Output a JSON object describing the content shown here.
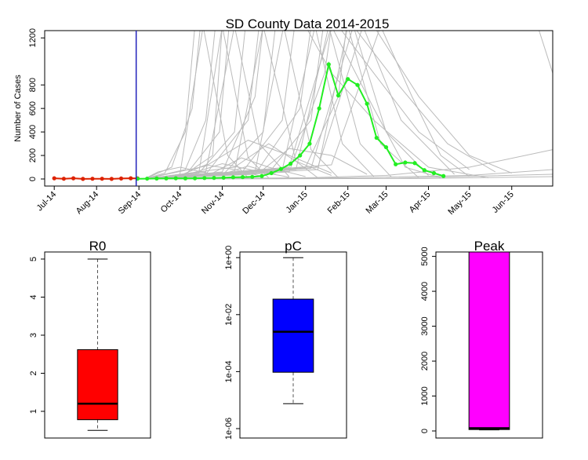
{
  "chart_data": [
    {
      "type": "line",
      "title": "SD County Data 2014-2015",
      "xlabel": "",
      "ylabel": "Number of Cases",
      "x_range": [
        "2014-06-24",
        "2015-07-01"
      ],
      "ylim": [
        0,
        1200
      ],
      "yticks": [
        0,
        200,
        400,
        600,
        800,
        1200
      ],
      "x_ticks": [
        {
          "label": "Jul-14",
          "date": "2014-07-01"
        },
        {
          "label": "Aug-14",
          "date": "2014-08-01"
        },
        {
          "label": "Sep-14",
          "date": "2014-09-01"
        },
        {
          "label": "Oct-14",
          "date": "2014-10-01"
        },
        {
          "label": "Nov-14",
          "date": "2014-11-01"
        },
        {
          "label": "Dec-14",
          "date": "2014-12-01"
        },
        {
          "label": "Jan-15",
          "date": "2015-01-01"
        },
        {
          "label": "Feb-15",
          "date": "2015-02-01"
        },
        {
          "label": "Mar-15",
          "date": "2015-03-01"
        },
        {
          "label": "Apr-15",
          "date": "2015-04-01"
        },
        {
          "label": "May-15",
          "date": "2015-05-01"
        },
        {
          "label": "Jun-15",
          "date": "2015-06-01"
        }
      ],
      "forecast_start": "2014-08-30",
      "colors": {
        "observed": "#dd2200",
        "fitted": "#22ee22",
        "simulations": "#bbbbbb",
        "forecast_line": "#2222bb"
      },
      "series": [
        {
          "color": "#dd2200",
          "points": [
            [
              "2014-07-01",
              6
            ],
            [
              "2014-07-08",
              2
            ],
            [
              "2014-07-15",
              6
            ],
            [
              "2014-07-22",
              1
            ],
            [
              "2014-07-29",
              2
            ],
            [
              "2014-08-05",
              2
            ],
            [
              "2014-08-12",
              1
            ],
            [
              "2014-08-19",
              4
            ],
            [
              "2014-08-26",
              6
            ],
            [
              "2014-08-31",
              5
            ]
          ]
        },
        {
          "color": "#22ee22",
          "points": [
            [
              "2014-08-31",
              2
            ],
            [
              "2014-09-07",
              3
            ],
            [
              "2014-09-14",
              4
            ],
            [
              "2014-09-21",
              5
            ],
            [
              "2014-09-28",
              6
            ],
            [
              "2014-10-05",
              5
            ],
            [
              "2014-10-12",
              6
            ],
            [
              "2014-10-19",
              8
            ],
            [
              "2014-10-26",
              9
            ],
            [
              "2014-11-02",
              11
            ],
            [
              "2014-11-09",
              14
            ],
            [
              "2014-11-16",
              16
            ],
            [
              "2014-11-23",
              18
            ],
            [
              "2014-11-30",
              25
            ],
            [
              "2014-12-07",
              50
            ],
            [
              "2014-12-14",
              85
            ],
            [
              "2014-12-21",
              130
            ],
            [
              "2014-12-28",
              200
            ],
            [
              "2015-01-04",
              300
            ],
            [
              "2015-01-11",
              600
            ],
            [
              "2015-01-18",
              975
            ],
            [
              "2015-01-25",
              710
            ],
            [
              "2015-02-01",
              850
            ],
            [
              "2015-02-08",
              800
            ],
            [
              "2015-02-15",
              640
            ],
            [
              "2015-02-22",
              350
            ],
            [
              "2015-03-01",
              270
            ],
            [
              "2015-03-08",
              125
            ],
            [
              "2015-03-15",
              140
            ],
            [
              "2015-03-22",
              135
            ],
            [
              "2015-03-29",
              75
            ],
            [
              "2015-04-05",
              50
            ],
            [
              "2015-04-12",
              25
            ]
          ]
        }
      ],
      "simulations": [
        [
          [
            "2014-09-05",
            0
          ],
          [
            "2014-10-01",
            10
          ],
          [
            "2014-10-25",
            200
          ],
          [
            "2014-11-01",
            1300
          ]
        ],
        [
          [
            "2014-09-05",
            0
          ],
          [
            "2014-10-05",
            30
          ],
          [
            "2014-10-30",
            400
          ],
          [
            "2014-11-06",
            1300
          ]
        ],
        [
          [
            "2014-09-05",
            0
          ],
          [
            "2014-09-20",
            50
          ],
          [
            "2014-10-05",
            400
          ],
          [
            "2014-10-12",
            1300
          ]
        ],
        [
          [
            "2014-09-05",
            0
          ],
          [
            "2014-09-25",
            100
          ],
          [
            "2014-10-10",
            600
          ],
          [
            "2014-10-16",
            1300
          ]
        ],
        [
          [
            "2014-09-05",
            0
          ],
          [
            "2014-10-05",
            80
          ],
          [
            "2014-10-20",
            500
          ],
          [
            "2014-10-27",
            1300
          ]
        ],
        [
          [
            "2014-09-05",
            0
          ],
          [
            "2014-10-15",
            50
          ],
          [
            "2014-11-10",
            400
          ],
          [
            "2014-11-18",
            1300
          ]
        ],
        [
          [
            "2014-09-05",
            0
          ],
          [
            "2014-10-20",
            40
          ],
          [
            "2014-11-20",
            500
          ],
          [
            "2014-11-28",
            1300
          ]
        ],
        [
          [
            "2014-09-05",
            0
          ],
          [
            "2014-11-01",
            30
          ],
          [
            "2014-12-01",
            400
          ],
          [
            "2014-12-10",
            1300
          ]
        ],
        [
          [
            "2014-09-05",
            0
          ],
          [
            "2014-11-01",
            60
          ],
          [
            "2014-11-25",
            700
          ],
          [
            "2014-12-01",
            1300
          ]
        ],
        [
          [
            "2014-09-05",
            0
          ],
          [
            "2014-11-15",
            50
          ],
          [
            "2014-12-15",
            500
          ],
          [
            "2014-12-24",
            1300
          ]
        ],
        [
          [
            "2014-09-05",
            0
          ],
          [
            "2014-11-25",
            40
          ],
          [
            "2014-12-28",
            600
          ],
          [
            "2015-01-05",
            1300
          ]
        ],
        [
          [
            "2014-09-05",
            0
          ],
          [
            "2014-12-05",
            50
          ],
          [
            "2015-01-05",
            500
          ],
          [
            "2015-01-14",
            1300
          ]
        ],
        [
          [
            "2014-09-05",
            0
          ],
          [
            "2014-12-20",
            60
          ],
          [
            "2015-01-15",
            900
          ],
          [
            "2015-01-20",
            1300
          ]
        ],
        [
          [
            "2014-09-05",
            0
          ],
          [
            "2015-01-01",
            100
          ],
          [
            "2015-01-25",
            700
          ],
          [
            "2015-01-31",
            1300
          ]
        ],
        [
          [
            "2014-09-05",
            0
          ],
          [
            "2014-10-01",
            40
          ],
          [
            "2014-10-18",
            1300
          ],
          [
            "2014-11-05",
            200
          ],
          [
            "2014-11-20",
            10
          ]
        ],
        [
          [
            "2014-09-05",
            0
          ],
          [
            "2014-10-15",
            60
          ],
          [
            "2014-11-01",
            1300
          ],
          [
            "2014-11-20",
            180
          ],
          [
            "2014-12-05",
            10
          ]
        ],
        [
          [
            "2014-09-05",
            0
          ],
          [
            "2014-10-20",
            60
          ],
          [
            "2014-11-10",
            1300
          ],
          [
            "2014-11-28",
            300
          ],
          [
            "2014-12-20",
            20
          ]
        ],
        [
          [
            "2014-09-05",
            0
          ],
          [
            "2014-11-10",
            60
          ],
          [
            "2014-12-01",
            1300
          ],
          [
            "2014-12-25",
            150
          ],
          [
            "2015-01-10",
            10
          ]
        ],
        [
          [
            "2014-09-05",
            0
          ],
          [
            "2014-11-25",
            60
          ],
          [
            "2014-12-16",
            1300
          ],
          [
            "2015-01-05",
            250
          ],
          [
            "2015-01-25",
            10
          ]
        ],
        [
          [
            "2014-09-05",
            0
          ],
          [
            "2014-12-15",
            80
          ],
          [
            "2015-01-08",
            1300
          ],
          [
            "2015-01-28",
            300
          ],
          [
            "2015-02-20",
            20
          ]
        ],
        [
          [
            "2014-09-05",
            0
          ],
          [
            "2014-12-25",
            80
          ],
          [
            "2015-01-18",
            1300
          ],
          [
            "2015-02-10",
            300
          ],
          [
            "2015-03-05",
            15
          ]
        ],
        [
          [
            "2014-09-05",
            0
          ],
          [
            "2015-01-10",
            80
          ],
          [
            "2015-02-01",
            1300
          ],
          [
            "2015-02-25",
            300
          ],
          [
            "2015-03-25",
            10
          ]
        ],
        [
          [
            "2014-09-05",
            0
          ],
          [
            "2015-01-05",
            90
          ],
          [
            "2015-02-05",
            1300
          ],
          [
            "2015-03-01",
            400
          ],
          [
            "2015-04-01",
            30
          ]
        ],
        [
          [
            "2014-09-05",
            0
          ],
          [
            "2014-12-20",
            100
          ],
          [
            "2015-01-20",
            1300
          ],
          [
            "2015-02-20",
            600
          ],
          [
            "2015-03-15",
            100
          ],
          [
            "2015-04-10",
            10
          ]
        ],
        [
          [
            "2014-09-05",
            0
          ],
          [
            "2015-01-10",
            100
          ],
          [
            "2015-02-12",
            1300
          ],
          [
            "2015-03-12",
            500
          ],
          [
            "2015-04-20",
            40
          ]
        ],
        [
          [
            "2014-09-05",
            0
          ],
          [
            "2015-01-20",
            120
          ],
          [
            "2015-02-25",
            1300
          ],
          [
            "2015-03-20",
            700
          ],
          [
            "2015-04-10",
            200
          ],
          [
            "2015-05-01",
            20
          ]
        ],
        [
          [
            "2014-09-05",
            0
          ],
          [
            "2014-10-01",
            30
          ],
          [
            "2014-10-20",
            120
          ],
          [
            "2014-11-10",
            80
          ],
          [
            "2014-12-01",
            20
          ]
        ],
        [
          [
            "2014-09-05",
            0
          ],
          [
            "2014-10-10",
            50
          ],
          [
            "2014-11-01",
            130
          ],
          [
            "2014-11-25",
            70
          ],
          [
            "2014-12-20",
            15
          ]
        ],
        [
          [
            "2014-09-05",
            0
          ],
          [
            "2014-10-25",
            50
          ],
          [
            "2014-11-15",
            180
          ],
          [
            "2014-12-05",
            100
          ],
          [
            "2015-01-01",
            20
          ]
        ],
        [
          [
            "2014-09-05",
            0
          ],
          [
            "2014-11-10",
            100
          ],
          [
            "2014-12-05",
            300
          ],
          [
            "2014-12-25",
            150
          ],
          [
            "2015-01-20",
            30
          ]
        ],
        [
          [
            "2014-09-05",
            0
          ],
          [
            "2014-10-20",
            110
          ],
          [
            "2014-11-20",
            330
          ],
          [
            "2014-12-20",
            200
          ],
          [
            "2015-01-20",
            50
          ]
        ],
        [
          [
            "2014-09-05",
            0
          ],
          [
            "2014-12-01",
            80
          ],
          [
            "2014-12-20",
            260
          ],
          [
            "2015-01-20",
            200
          ],
          [
            "2015-02-15",
            40
          ]
        ],
        [
          [
            "2014-09-05",
            0
          ],
          [
            "2014-11-01",
            40
          ],
          [
            "2014-11-20",
            110
          ],
          [
            "2014-12-10",
            40
          ]
        ],
        [
          [
            "2014-09-05",
            0
          ],
          [
            "2014-09-15",
            60
          ],
          [
            "2014-10-01",
            100
          ],
          [
            "2014-10-25",
            40
          ]
        ],
        [
          [
            "2014-09-05",
            0
          ],
          [
            "2015-01-01",
            10
          ],
          [
            "2015-03-01",
            30
          ],
          [
            "2015-05-01",
            100
          ],
          [
            "2015-07-01",
            250
          ]
        ],
        [
          [
            "2014-09-05",
            0
          ],
          [
            "2015-02-01",
            10
          ],
          [
            "2015-05-01",
            30
          ],
          [
            "2015-07-01",
            80
          ]
        ],
        [
          [
            "2014-09-05",
            0
          ],
          [
            "2015-03-01",
            5
          ],
          [
            "2015-07-01",
            40
          ]
        ],
        [
          [
            "2014-09-05",
            0
          ],
          [
            "2015-04-01",
            5
          ],
          [
            "2015-07-01",
            20
          ]
        ],
        [
          [
            "2015-01-01",
            1300
          ],
          [
            "2015-01-20",
            900
          ],
          [
            "2015-02-20",
            500
          ],
          [
            "2015-04-01",
            100
          ],
          [
            "2015-05-15",
            10
          ]
        ],
        [
          [
            "2015-01-25",
            1300
          ],
          [
            "2015-02-20",
            900
          ],
          [
            "2015-03-25",
            400
          ],
          [
            "2015-05-01",
            80
          ]
        ],
        [
          [
            "2015-02-05",
            1300
          ],
          [
            "2015-03-10",
            800
          ],
          [
            "2015-04-15",
            300
          ],
          [
            "2015-05-20",
            60
          ]
        ],
        [
          [
            "2015-02-20",
            1300
          ],
          [
            "2015-03-25",
            700
          ],
          [
            "2015-05-01",
            200
          ],
          [
            "2015-06-01",
            50
          ]
        ],
        [
          [
            "2015-06-20",
            1300
          ],
          [
            "2015-07-01",
            900
          ]
        ]
      ]
    },
    {
      "type": "box",
      "title": "R0",
      "ylim": [
        0.4,
        5.2
      ],
      "yticks": [
        1,
        2,
        3,
        4,
        5
      ],
      "color": "#ff0000",
      "stats": {
        "min": 0.5,
        "q1": 0.78,
        "median": 1.2,
        "q3": 2.62,
        "max": 5.0
      }
    },
    {
      "type": "box",
      "title": "pC",
      "scale": "log",
      "ylim": [
        1e-06,
        1.3
      ],
      "yticks": [
        {
          "value": 1e-06,
          "label": "1e-06"
        },
        {
          "value": 0.0001,
          "label": "1e-04"
        },
        {
          "value": 0.01,
          "label": "1e-02"
        },
        {
          "value": 1,
          "label": "1e+00"
        }
      ],
      "color": "#0000ff",
      "stats": {
        "min": 7.5e-06,
        "q1": 9.5e-05,
        "median": 0.0025,
        "q3": 0.035,
        "max": 1.0
      }
    },
    {
      "type": "box",
      "title": "Peak",
      "ylim": [
        -100,
        5200
      ],
      "yticks": [
        0,
        1000,
        2000,
        3000,
        4000,
        5000
      ],
      "color": "#ff00ff",
      "stats": {
        "min": 30,
        "q1": 40,
        "median": 80,
        "q3": 5200,
        "max": 5200
      }
    }
  ]
}
